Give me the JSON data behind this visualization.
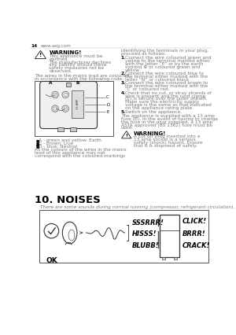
{
  "page_num": "14",
  "website": "www.aeg.com",
  "bg_color": "#ffffff",
  "text_color": "#000000",
  "gray_color": "#777777",
  "warning1_title": "WARNING!",
  "warning1_lines": [
    "This appliance must be",
    "earthed.",
    "The manufacturer declines",
    "any liability should these",
    "safety measures not be",
    "observed."
  ],
  "wires_intro": [
    "The wires in the mains lead are coloured",
    "in accordance with the following code:"
  ],
  "bullets": [
    "A - green and yellow: Earth",
    "C - brown: Live",
    "D - blue: Neutral"
  ],
  "as_colours_lines": [
    "As the colours of the wires in the mains",
    "lead of this appliance may not",
    "correspond with the coloured markings"
  ],
  "right_col_intro": [
    "identifying the terminals in your plug,",
    "proceed as follows:"
  ],
  "steps": [
    [
      "Connect the wire coloured green and",
      "yellow to the terminal marked either",
      "with the letter “E” or by the earth",
      "symbol ⊕ or coloured green and",
      "yellow."
    ],
    [
      "Connect the wire coloured blue to",
      "the terminal either marked with the",
      "letter “N” or coloured black."
    ],
    [
      "Connect the wire coloured brown to",
      "the terminal either marked with the",
      "“L” or coloured red."
    ],
    [
      "Check that no cut, or stray strands of",
      "wire is present and the cord clamp",
      "(E) is secure over the outer sheath.",
      "Make sure the electricity supply",
      "voltage is the same as that indicated",
      "on the appliance rating plate."
    ],
    [
      "Switch on the appliance."
    ]
  ],
  "after_steps": [
    "The appliance is supplied with a 13 amp",
    "fuse (B). In the event of having to change",
    "the fuse in the plug supplied, a 13 amp",
    "ASTA approved (BS 1362) fuse must be",
    "used."
  ],
  "warning2_title": "WARNING!",
  "warning2_lines": [
    "A cut off plug inserted into a",
    "13 amp socket is a serious",
    "safety (shock) hazard. Ensure",
    "that it is disposed of safely."
  ],
  "section_title": "10. NOISES",
  "noises_intro": "There are some sounds during normal running (compressor, refrigerant circulation).",
  "noise_sounds": [
    "SSSRRR!",
    "HISSS!",
    "BLUBB!"
  ],
  "noise_sounds2": [
    "CLICK!",
    "BRRR!",
    "CRACK!"
  ],
  "ok_label": "OK"
}
